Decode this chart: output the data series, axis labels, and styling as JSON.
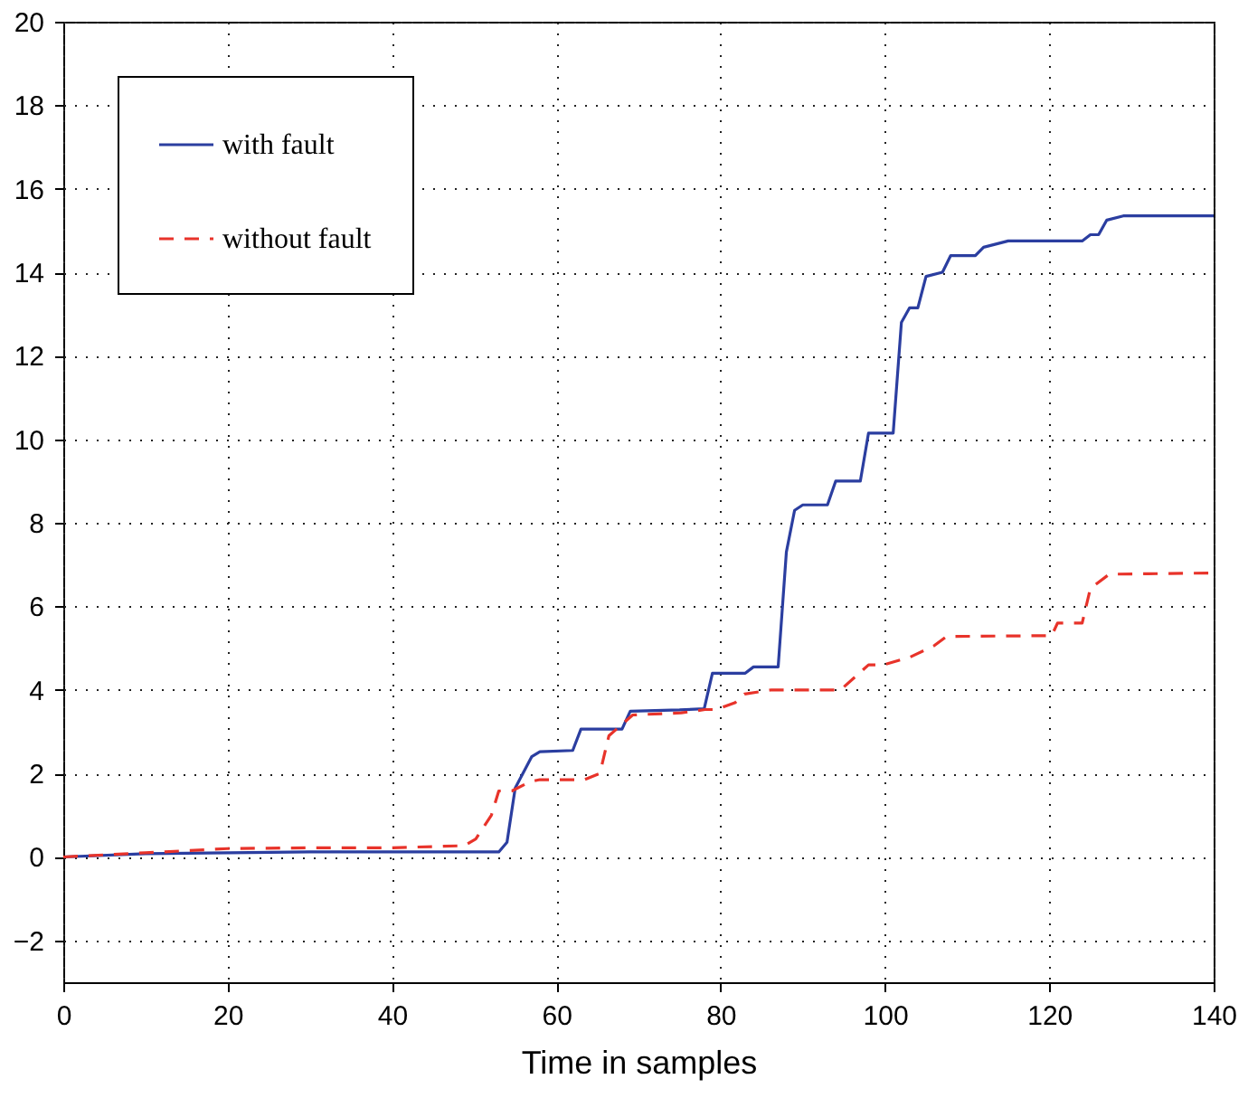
{
  "chart_data": {
    "type": "line",
    "xlabel": "Time in samples",
    "xlim": [
      0,
      140
    ],
    "xticks": [
      0,
      20,
      40,
      60,
      80,
      100,
      120,
      140
    ],
    "ylim": [
      -3,
      20
    ],
    "yticks": [
      -2,
      0,
      2,
      4,
      6,
      8,
      10,
      12,
      14,
      16,
      18,
      20
    ],
    "grid": true,
    "legend": "top left",
    "marker": "none",
    "series": [
      {
        "name": "with fault",
        "color": "#2b3ea0",
        "line_style": "solid",
        "x": [
          0,
          10,
          20,
          30,
          40,
          50,
          53,
          54,
          55,
          57,
          58,
          62,
          63,
          68,
          69,
          75,
          78,
          79,
          83,
          84,
          87,
          88,
          89,
          90,
          93,
          94,
          97,
          98,
          101,
          102,
          103,
          104,
          105,
          107,
          108,
          111,
          112,
          115,
          124,
          125,
          126,
          127,
          129,
          140
        ],
        "values": [
          0,
          0.08,
          0.1,
          0.12,
          0.12,
          0.12,
          0.12,
          0.35,
          1.65,
          2.4,
          2.52,
          2.55,
          3.06,
          3.06,
          3.49,
          3.52,
          3.55,
          4.4,
          4.4,
          4.55,
          4.55,
          7.3,
          8.3,
          8.43,
          8.43,
          9.0,
          9.0,
          10.15,
          10.15,
          12.8,
          13.15,
          13.15,
          13.9,
          14.0,
          14.4,
          14.4,
          14.6,
          14.75,
          14.75,
          14.9,
          14.9,
          15.25,
          15.35,
          15.35
        ]
      },
      {
        "name": "without fault",
        "color": "#e8332a",
        "line_style": "dashed",
        "x": [
          0,
          10,
          20,
          30,
          40,
          48.8,
          50.2,
          52.1,
          53,
          54.6,
          56.8,
          58,
          63.4,
          65.3,
          66.4,
          69.3,
          75.2,
          78.1,
          79.5,
          81.8,
          82.9,
          86.2,
          94.6,
          98,
          99.8,
          103,
          106,
          107.5,
          120.3,
          121,
          124,
          125,
          127.3,
          140
        ],
        "values": [
          0,
          0.1,
          0.2,
          0.22,
          0.22,
          0.27,
          0.43,
          1.0,
          1.58,
          1.58,
          1.8,
          1.85,
          1.85,
          2.0,
          2.9,
          3.4,
          3.45,
          3.53,
          3.53,
          3.7,
          3.9,
          4.0,
          4.0,
          4.6,
          4.6,
          4.78,
          5.06,
          5.28,
          5.3,
          5.6,
          5.6,
          6.43,
          6.77,
          6.8
        ]
      }
    ]
  }
}
